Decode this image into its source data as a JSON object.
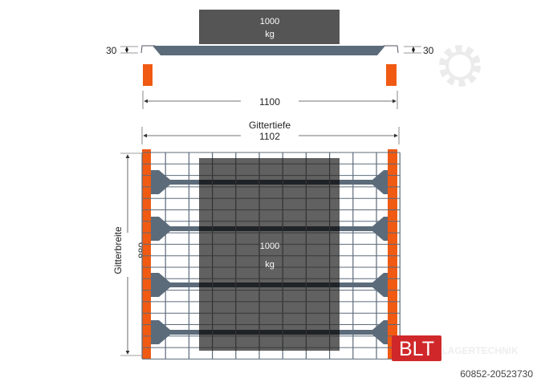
{
  "top_view": {
    "load_weight": "1000",
    "load_unit": "kg",
    "left_height": "30",
    "right_height": "30",
    "span": "1100"
  },
  "plan_view": {
    "depth_label": "Gittertiefe",
    "depth_value": "1102",
    "width_label": "Gitterbreite",
    "width_value": "880",
    "load_weight": "1000",
    "load_unit": "kg"
  },
  "logo": {
    "brand": "BLT",
    "subtitle": "LAGERTECHNIK"
  },
  "reference_number": "60852-20523730",
  "colors": {
    "upright": "#f05a12",
    "load": "#555555",
    "beam": "#5c6b7a",
    "grid": "#5c6b7a",
    "logo_red": "#d0282a"
  }
}
